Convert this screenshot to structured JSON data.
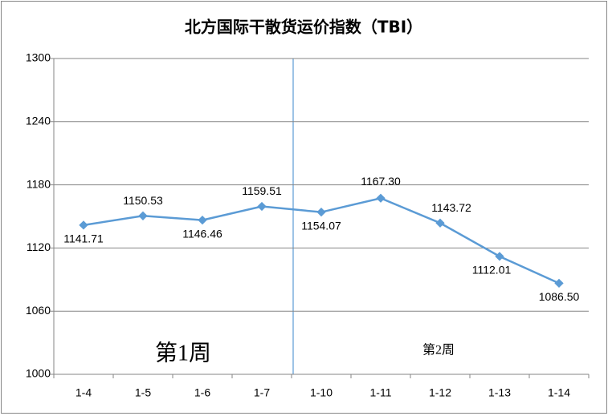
{
  "chart_data": {
    "type": "line",
    "title": "北方国际干散货运价指数（TBI）",
    "categories": [
      "1-4",
      "1-5",
      "1-6",
      "1-7",
      "1-10",
      "1-11",
      "1-12",
      "1-13",
      "1-14"
    ],
    "series": [
      {
        "name": "TBI",
        "color": "#5b9bd5",
        "values": [
          1141.71,
          1150.53,
          1146.46,
          1159.51,
          1154.07,
          1167.3,
          1143.72,
          1112.01,
          1086.5
        ],
        "value_labels": [
          "1141.71",
          "1150.53",
          "1146.46",
          "1159.51",
          "1154.07",
          "1167.30",
          "1143.72",
          "1112.01",
          "1086.50"
        ]
      }
    ],
    "ylim": [
      1000,
      1300
    ],
    "yticks": [
      1000,
      1060,
      1120,
      1180,
      1240,
      1300
    ],
    "grid": true,
    "annotations": [
      "第1周",
      "第2周"
    ]
  }
}
